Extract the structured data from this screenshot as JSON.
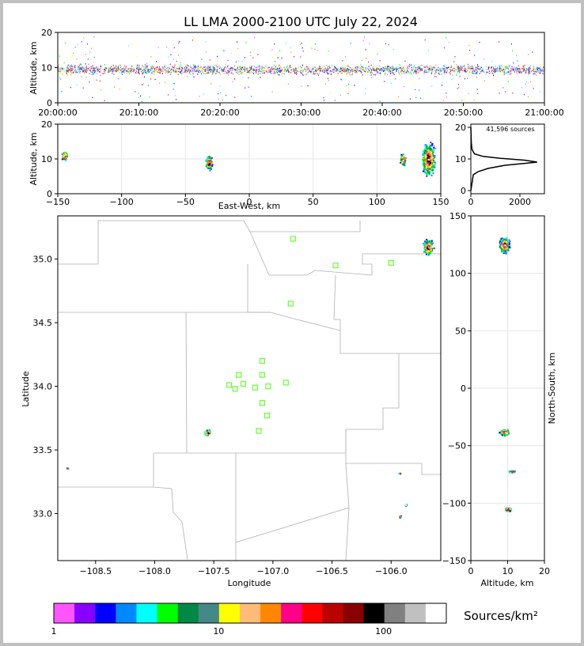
{
  "title": "LL LMA 2000-2100 UTC July 22, 2024",
  "colors": {
    "colorbar": [
      "#ff55ff",
      "#8800ff",
      "#0000ff",
      "#0088ff",
      "#00ffff",
      "#00ff00",
      "#008844",
      "#448888",
      "#ffff00",
      "#ffbb77",
      "#ff8800",
      "#ff0088",
      "#ff0000",
      "#bb0000",
      "#880000",
      "#000000",
      "#808080",
      "#c0c0c0",
      "#ffffff"
    ],
    "marker": "#66ff33",
    "border": "#b0b0b0"
  },
  "chart_data": [
    {
      "id": "time-height",
      "type": "scatter",
      "ylabel": "Altitude, km",
      "ylim": [
        0,
        20
      ],
      "yticks": [
        "0",
        "10",
        "20"
      ],
      "xticks": [
        "20:00:00",
        "20:10:00",
        "20:20:00",
        "20:30:00",
        "20:40:00",
        "20:50:00",
        "21:00:00"
      ],
      "x_range_minutes": [
        0,
        60
      ],
      "band_altitude_km": [
        7,
        12
      ]
    },
    {
      "id": "ew-height",
      "type": "heatmap",
      "xlabel": "East-West, km",
      "ylabel": "Altitude, km",
      "xlim": [
        -150,
        150
      ],
      "ylim": [
        0,
        20
      ],
      "xticks": [
        "−150",
        "−100",
        "−50",
        "0",
        "50",
        "100",
        "150"
      ],
      "yticks": [
        "0",
        "10",
        "20"
      ],
      "clusters_km": [
        {
          "x": -32,
          "z": 9,
          "w": 6,
          "h": 5
        },
        {
          "x": 140,
          "z": 10,
          "w": 12,
          "h": 11
        },
        {
          "x": 120,
          "z": 10,
          "w": 5,
          "h": 4
        },
        {
          "x": -145,
          "z": 11,
          "w": 5,
          "h": 3
        }
      ]
    },
    {
      "id": "altitude-histogram",
      "type": "line",
      "annotation": "41,596 sources",
      "xlim": [
        0,
        3000
      ],
      "ylim": [
        -1,
        21
      ],
      "xticks": [
        "0",
        "2000"
      ],
      "yticks": [
        "0",
        "10",
        "20"
      ],
      "profile": [
        [
          0,
          0
        ],
        [
          100,
          5
        ],
        [
          300,
          6
        ],
        [
          700,
          7
        ],
        [
          1400,
          8
        ],
        [
          2200,
          8.6
        ],
        [
          2700,
          9
        ],
        [
          2200,
          9.6
        ],
        [
          1200,
          10.2
        ],
        [
          500,
          10.8
        ],
        [
          150,
          11.6
        ],
        [
          50,
          13
        ],
        [
          20,
          15
        ],
        [
          0,
          20
        ]
      ]
    },
    {
      "id": "plan-view",
      "type": "heatmap",
      "xlabel": "Longitude",
      "ylabel": "Latitude",
      "xlim": [
        -108.82,
        -105.58
      ],
      "ylim": [
        32.63,
        35.34
      ],
      "xticks": [
        "−108.5",
        "−108.0",
        "−107.5",
        "−107.0",
        "−106.5",
        "−106.0"
      ],
      "yticks": [
        "33.0",
        "33.5",
        "34.0",
        "34.5",
        "35.0"
      ],
      "stations": [
        [
          -106.83,
          35.16
        ],
        [
          -106.47,
          34.95
        ],
        [
          -106.0,
          34.97
        ],
        [
          -106.85,
          34.65
        ],
        [
          -107.09,
          34.2
        ],
        [
          -107.29,
          34.09
        ],
        [
          -107.09,
          34.09
        ],
        [
          -107.37,
          34.01
        ],
        [
          -107.25,
          34.02
        ],
        [
          -107.32,
          33.98
        ],
        [
          -107.15,
          33.99
        ],
        [
          -107.04,
          34.0
        ],
        [
          -106.89,
          34.03
        ],
        [
          -107.09,
          33.87
        ],
        [
          -107.05,
          33.77
        ],
        [
          -107.12,
          33.65
        ]
      ],
      "clusters_deg": [
        {
          "lon": -105.69,
          "lat": 35.1,
          "w": 0.1,
          "h": 0.14
        },
        {
          "lon": -107.56,
          "lat": 33.64,
          "w": 0.06,
          "h": 0.06
        },
        {
          "lon": -105.93,
          "lat": 33.32,
          "w": 0.03,
          "h": 0.02
        },
        {
          "lon": -105.88,
          "lat": 33.07,
          "w": 0.02,
          "h": 0.02
        },
        {
          "lon": -105.93,
          "lat": 32.98,
          "w": 0.02,
          "h": 0.03
        },
        {
          "lon": -108.74,
          "lat": 33.36,
          "w": 0.02,
          "h": 0.02
        }
      ]
    },
    {
      "id": "ns-height",
      "type": "heatmap",
      "xlabel": "Altitude, km",
      "ylabel": "North-South, km",
      "xlim": [
        0,
        20
      ],
      "ylim": [
        -150,
        150
      ],
      "xticks": [
        "0",
        "10",
        "20"
      ],
      "yticks": [
        "−150",
        "−100",
        "−50",
        "0",
        "50",
        "100",
        "150"
      ],
      "clusters_km": [
        {
          "z": 9,
          "y": 125,
          "w": 3,
          "h": 16
        },
        {
          "z": 9,
          "y": -38,
          "w": 3,
          "h": 6
        },
        {
          "z": 11,
          "y": -72,
          "w": 2,
          "h": 2
        },
        {
          "z": 10,
          "y": -105,
          "w": 2,
          "h": 4
        }
      ]
    },
    {
      "id": "colorbar",
      "type": "table",
      "label": "Sources/km²",
      "ticks": [
        "1",
        "10",
        "100"
      ]
    }
  ]
}
